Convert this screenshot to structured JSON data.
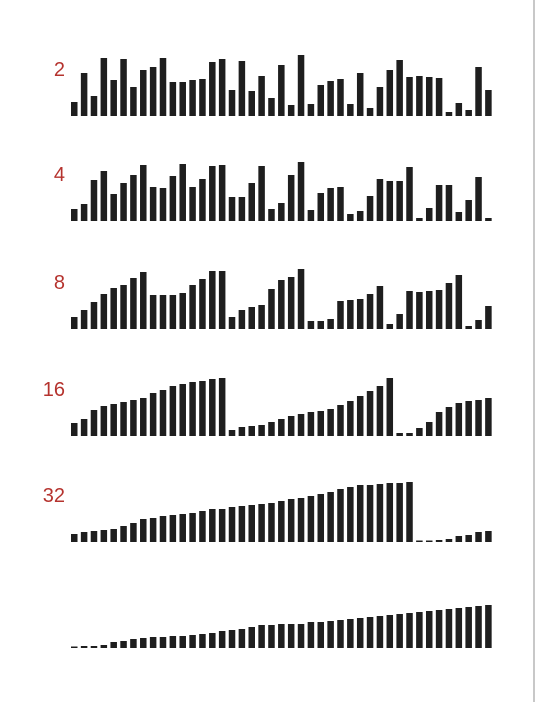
{
  "colors": {
    "bars": "#1e1e1e",
    "labels": "#b5332e",
    "background": "#ffffff"
  },
  "chart_data": {
    "type": "bar",
    "title": "",
    "xlabel": "",
    "ylabel": "",
    "grid": false,
    "legend": "none",
    "bar_count_per_row": 43,
    "ylim": [
      0,
      62
    ],
    "series": [
      {
        "label": "2",
        "values": [
          14,
          43,
          20,
          58,
          36,
          57,
          29,
          46,
          49,
          58,
          34,
          34,
          36,
          37,
          54,
          57,
          26,
          55,
          25,
          40,
          18,
          51,
          11,
          61,
          12,
          31,
          35,
          37,
          12,
          43,
          8,
          29,
          46,
          56,
          39,
          40,
          39,
          38,
          4,
          13,
          6,
          49,
          26
        ]
      },
      {
        "label": "4",
        "values": [
          12,
          17,
          41,
          50,
          27,
          38,
          46,
          56,
          34,
          33,
          45,
          57,
          34,
          42,
          55,
          56,
          24,
          24,
          38,
          55,
          12,
          18,
          46,
          59,
          11,
          28,
          33,
          34,
          7,
          10,
          25,
          42,
          40,
          40,
          54,
          3,
          13,
          36,
          36,
          9,
          21,
          44,
          3,
          31
        ]
      },
      {
        "label": "8",
        "values": [
          12,
          19,
          27,
          35,
          41,
          44,
          51,
          57,
          34,
          34,
          34,
          36,
          44,
          50,
          58,
          58,
          12,
          19,
          22,
          24,
          40,
          49,
          52,
          60,
          8,
          8,
          10,
          28,
          29,
          30,
          35,
          43,
          5,
          15,
          38,
          37,
          38,
          39,
          46,
          54,
          3,
          9,
          23,
          31,
          35,
          42
        ]
      },
      {
        "label": "16",
        "values": [
          13,
          17,
          26,
          30,
          32,
          34,
          36,
          38,
          43,
          46,
          50,
          52,
          54,
          55,
          57,
          58,
          6,
          9,
          10,
          11,
          14,
          17,
          20,
          22,
          24,
          25,
          27,
          31,
          35,
          40,
          45,
          50,
          58,
          3,
          3,
          8,
          14,
          24,
          29,
          33,
          35,
          36,
          38,
          38,
          39,
          44,
          46,
          48
        ]
      },
      {
        "label": "32",
        "values": [
          8,
          10,
          11,
          12,
          13,
          16,
          19,
          23,
          24,
          26,
          27,
          28,
          29,
          31,
          33,
          33,
          35,
          36,
          37,
          38,
          39,
          41,
          43,
          44,
          46,
          48,
          50,
          53,
          55,
          57,
          57,
          58,
          59,
          59,
          60,
          1,
          1,
          2,
          3,
          6,
          7,
          10,
          11,
          12,
          14,
          17,
          20,
          22,
          23,
          24
        ]
      },
      {
        "label": "",
        "values": [
          1,
          2,
          2,
          3,
          6,
          7,
          9,
          10,
          11,
          11,
          12,
          12,
          13,
          14,
          15,
          17,
          18,
          19,
          21,
          23,
          23,
          24,
          24,
          24,
          26,
          26,
          27,
          28,
          29,
          30,
          31,
          32,
          33,
          34,
          35,
          36,
          37,
          38,
          39,
          40,
          41,
          42,
          43,
          44,
          45,
          46,
          47,
          48,
          48,
          48,
          49,
          49
        ]
      }
    ]
  }
}
